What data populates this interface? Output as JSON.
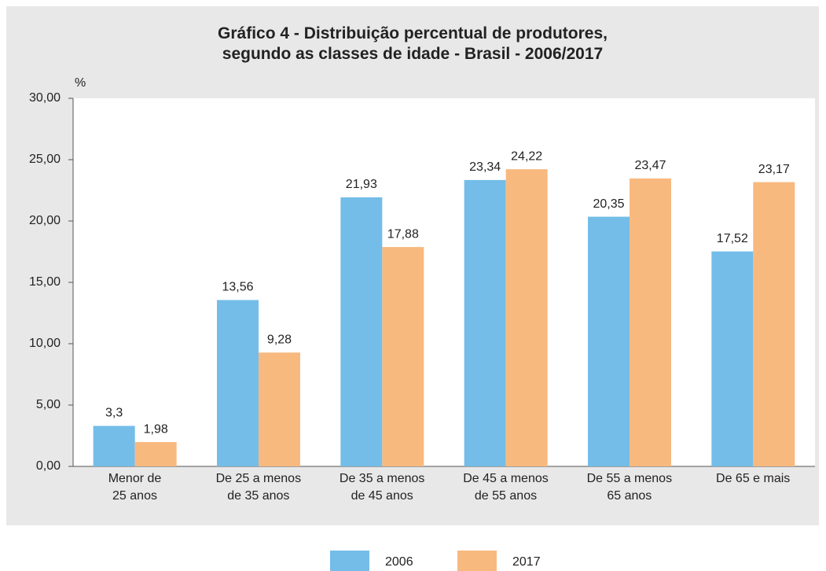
{
  "chart_data": {
    "type": "bar",
    "title": "Gráfico 4 - Distribuição percentual de produtores,\nsegundo as classes de idade - Brasil - 2006/2017",
    "y_label": "%",
    "categories": [
      "Menor de\n25 anos",
      "De 25 a menos\nde 35 anos",
      "De 35 a menos\nde 45 anos",
      "De 45 a menos\nde 55 anos",
      "De 55 a menos\n65 anos",
      "De 65 e mais"
    ],
    "series": [
      {
        "name": "2006",
        "color": "#74bde8",
        "values": [
          3.3,
          13.56,
          21.93,
          23.34,
          20.35,
          17.52
        ],
        "value_labels": [
          "3,3",
          "13,56",
          "21,93",
          "23,34",
          "20,35",
          "17,52"
        ]
      },
      {
        "name": "2017",
        "color": "#f8b97f",
        "values": [
          1.98,
          9.28,
          17.88,
          24.22,
          23.47,
          23.17
        ],
        "value_labels": [
          "1,98",
          "9,28",
          "17,88",
          "24,22",
          "23,47",
          "23,17"
        ]
      }
    ],
    "ylim": [
      0,
      30
    ],
    "yticks": [
      {
        "value": 0,
        "label": "0,00"
      },
      {
        "value": 5,
        "label": "5,00"
      },
      {
        "value": 10,
        "label": "10,00"
      },
      {
        "value": 15,
        "label": "15,00"
      },
      {
        "value": 20,
        "label": "20,00"
      },
      {
        "value": 25,
        "label": "25,00"
      },
      {
        "value": 30,
        "label": "30,00"
      }
    ],
    "grid": false,
    "legend": "bottom"
  }
}
